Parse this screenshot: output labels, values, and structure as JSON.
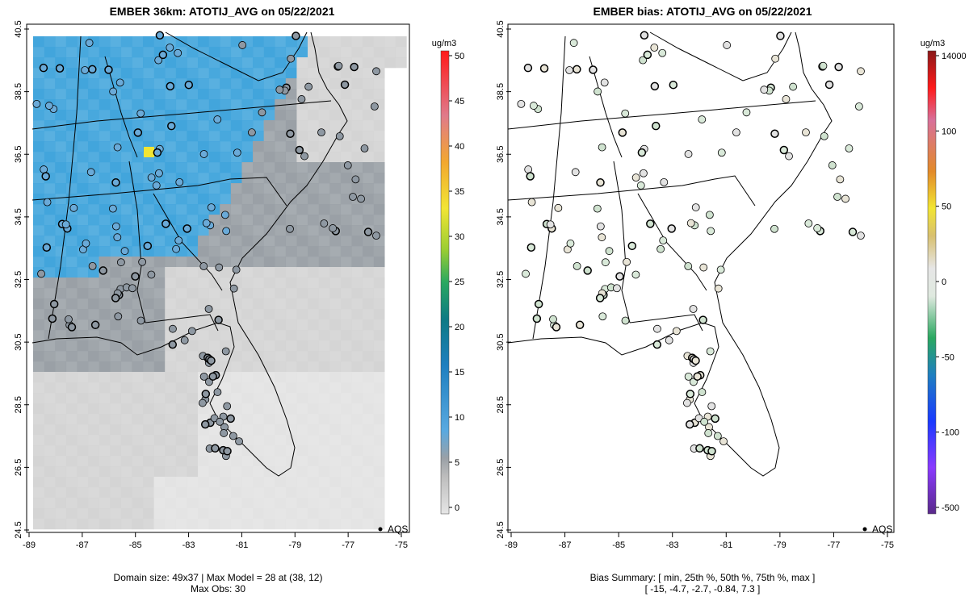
{
  "left_panel": {
    "title": "EMBER 36km: ATOTIJ_AVG on 05/22/2021",
    "x_ticks": [
      "-89",
      "-87",
      "-85",
      "-83",
      "-81",
      "-79",
      "-77",
      "-75"
    ],
    "y_ticks": [
      "24.5",
      "26.5",
      "28.5",
      "30.5",
      "32.5",
      "34.5",
      "36.5",
      "38.5",
      "40.5"
    ],
    "legend_label": "AQS",
    "colorbar_unit": "ug/m3",
    "colorbar_ticks": [
      "0",
      "5",
      "10",
      "15",
      "20",
      "25",
      "30",
      "35",
      "40",
      "45",
      "50"
    ],
    "caption_line1": "Domain size: 49x37 | Max Model = 28 at (38, 12)",
    "caption_line2": "Max Obs: 30"
  },
  "right_panel": {
    "title": "EMBER bias: ATOTIJ_AVG on 05/22/2021",
    "x_ticks": [
      "-89",
      "-87",
      "-85",
      "-83",
      "-81",
      "-79",
      "-77",
      "-75"
    ],
    "y_ticks": [
      "24.5",
      "26.5",
      "28.5",
      "30.5",
      "32.5",
      "34.5",
      "36.5",
      "38.5",
      "40.5"
    ],
    "legend_label": "AQS",
    "colorbar_unit": "ug/m3",
    "colorbar_ticks": [
      "-500",
      "-100",
      "-50",
      "0",
      "50",
      "100",
      "14000"
    ],
    "caption_line1": "Bias Summary: [ min, 25th %, 50th %, 75th %, max ]",
    "caption_line2": "[ -15,  -4.7,  -2.7,  -0.84,  7.3 ]"
  },
  "colors": {
    "high_conc": "#42a5dc",
    "mid_conc": "#9aa0a6",
    "low_conc": "#d4d4d4",
    "min_conc": "#e3e3e3",
    "peak_cell": "#f2e533"
  }
}
